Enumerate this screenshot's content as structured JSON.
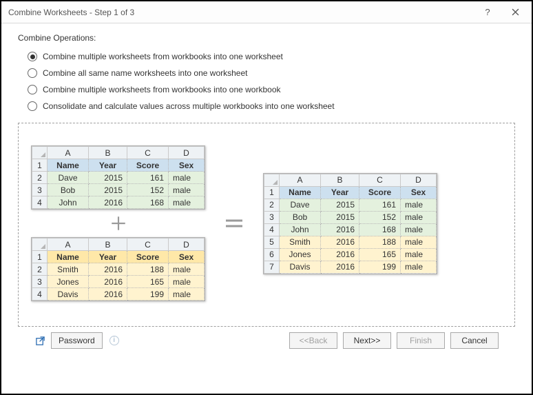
{
  "window": {
    "title": "Combine Worksheets - Step 1 of 3"
  },
  "group_label": "Combine Operations:",
  "options": [
    {
      "label": "Combine multiple worksheets from workbooks into one worksheet",
      "checked": true
    },
    {
      "label": "Combine all same name worksheets into one worksheet",
      "checked": false
    },
    {
      "label": "Combine multiple worksheets from workbooks into one workbook",
      "checked": false
    },
    {
      "label": "Consolidate and calculate values across multiple workbooks into one worksheet",
      "checked": false
    }
  ],
  "preview": {
    "col_letters": [
      "A",
      "B",
      "C",
      "D"
    ],
    "headers": [
      "Name",
      "Year",
      "Score",
      "Sex"
    ],
    "top": {
      "header_bg": "#cde0ef",
      "data_bg": "#e4f1de",
      "row_start": 2,
      "rows": [
        [
          "Dave",
          "2015",
          "161",
          "male"
        ],
        [
          "Bob",
          "2015",
          "152",
          "male"
        ],
        [
          "John",
          "2016",
          "168",
          "male"
        ]
      ]
    },
    "bottom": {
      "header_bg": "#ffe8a8",
      "data_bg": "#fff3cf",
      "row_start": 2,
      "rows": [
        [
          "Smith",
          "2016",
          "188",
          "male"
        ],
        [
          "Jones",
          "2016",
          "165",
          "male"
        ],
        [
          "Davis",
          "2016",
          "199",
          "male"
        ]
      ]
    },
    "result": {
      "header_bg": "#cde0ef",
      "row_start": 2,
      "rows": [
        {
          "cells": [
            "Dave",
            "2015",
            "161",
            "male"
          ],
          "bg": "#e4f1de"
        },
        {
          "cells": [
            "Bob",
            "2015",
            "152",
            "male"
          ],
          "bg": "#e4f1de"
        },
        {
          "cells": [
            "John",
            "2016",
            "168",
            "male"
          ],
          "bg": "#e4f1de"
        },
        {
          "cells": [
            "Smith",
            "2016",
            "188",
            "male"
          ],
          "bg": "#fff3cf"
        },
        {
          "cells": [
            "Jones",
            "2016",
            "165",
            "male"
          ],
          "bg": "#fff3cf"
        },
        {
          "cells": [
            "Davis",
            "2016",
            "199",
            "male"
          ],
          "bg": "#fff3cf"
        }
      ]
    }
  },
  "buttons": {
    "password": "Password",
    "back": "<<Back",
    "next": "Next>>",
    "finish": "Finish",
    "cancel": "Cancel"
  }
}
